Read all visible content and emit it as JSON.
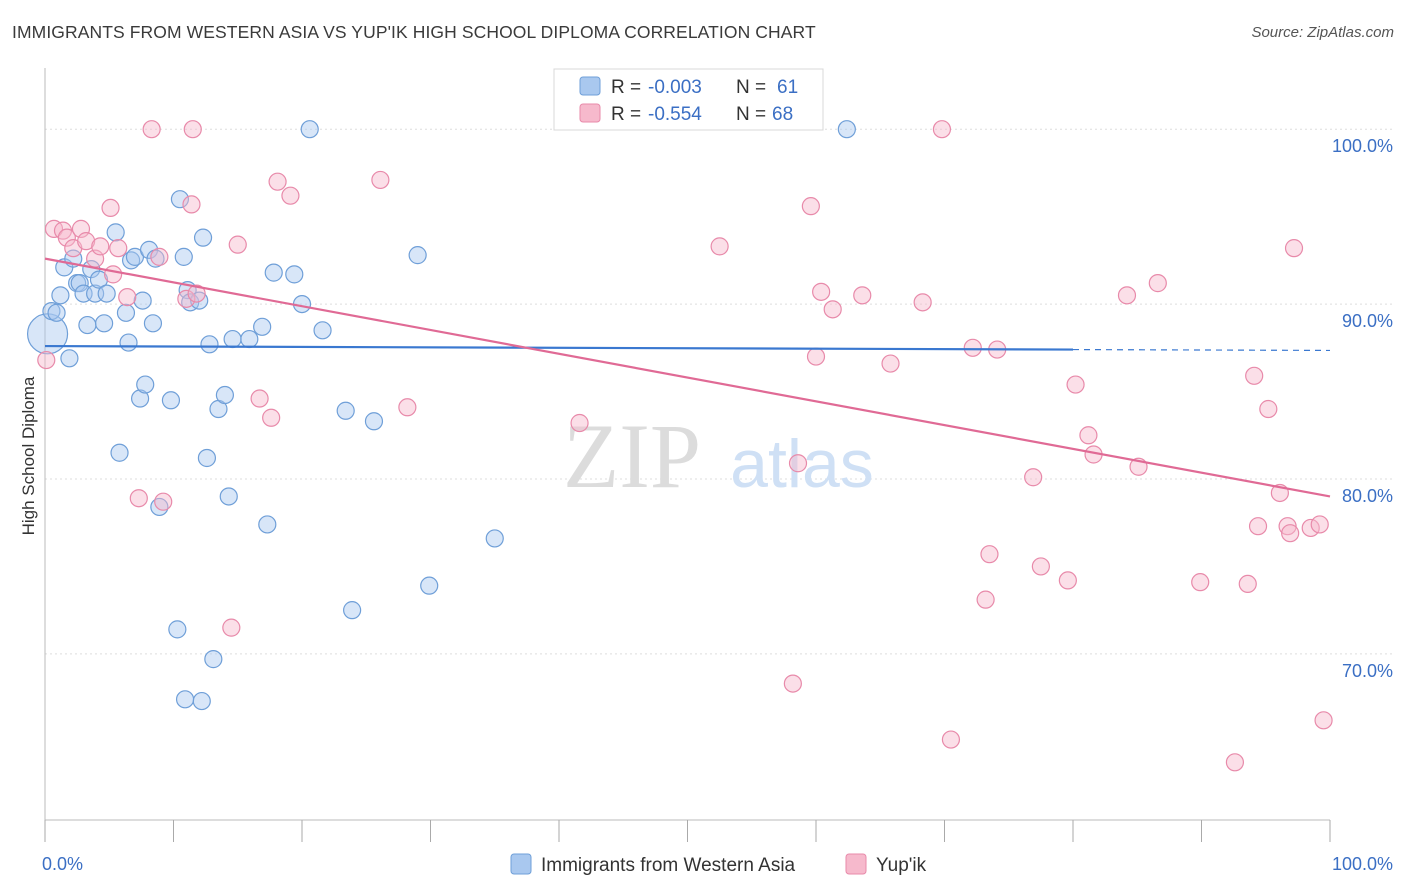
{
  "title": "IMMIGRANTS FROM WESTERN ASIA VS YUP'IK HIGH SCHOOL DIPLOMA CORRELATION CHART",
  "source": "Source: ZipAtlas.com",
  "watermark": {
    "zip": "ZIP",
    "atlas": "atlas"
  },
  "colors": {
    "blue_fill": "#a9c8ef",
    "blue_stroke": "#6f9fd8",
    "blue_line": "#3a78d0",
    "pink_fill": "#f6b9cc",
    "pink_stroke": "#e88aaa",
    "pink_line": "#e06a95",
    "grid": "#dddddd",
    "axis_label": "#3b6fc4"
  },
  "legend": {
    "rows": [
      {
        "r_label": "R = ",
        "r_value": "-0.003",
        "n_label": "N = ",
        "n_value": "61"
      },
      {
        "r_label": "R = ",
        "r_value": "-0.554",
        "n_label": "N = ",
        "n_value": "68"
      }
    ]
  },
  "bottom_legend": [
    "Immigrants from Western Asia",
    "Yup'ik"
  ],
  "chart_data": {
    "type": "scatter",
    "ylabel": "High School Diploma",
    "xlim": [
      0,
      100
    ],
    "ylim": [
      60.5,
      103.5
    ],
    "x_tick_labels": [
      "0.0%",
      "100.0%"
    ],
    "y_ticks": [
      {
        "value": 70,
        "label": "70.0%"
      },
      {
        "value": 80,
        "label": "80.0%"
      },
      {
        "value": 90,
        "label": "90.0%"
      },
      {
        "value": 100,
        "label": "100.0%"
      }
    ],
    "grid": true,
    "legend_position": "top-center",
    "series": [
      {
        "name": "Immigrants from Western Asia",
        "color": "blue",
        "trend": {
          "x": [
            0,
            80
          ],
          "y": [
            87.6,
            87.4
          ],
          "dashed_to": 100
        },
        "points": [
          [
            0.2,
            88.3,
            "big"
          ],
          [
            0.5,
            89.6
          ],
          [
            0.9,
            89.5
          ],
          [
            1.2,
            90.5
          ],
          [
            1.5,
            92.1
          ],
          [
            1.9,
            86.9
          ],
          [
            2.2,
            92.6
          ],
          [
            2.5,
            91.2
          ],
          [
            2.7,
            91.2
          ],
          [
            3.0,
            90.6
          ],
          [
            3.3,
            88.8
          ],
          [
            3.6,
            92.0
          ],
          [
            3.9,
            90.6
          ],
          [
            4.2,
            91.4
          ],
          [
            4.6,
            88.9
          ],
          [
            4.8,
            90.6
          ],
          [
            5.5,
            94.1
          ],
          [
            5.8,
            81.5
          ],
          [
            6.3,
            89.5
          ],
          [
            6.5,
            87.8
          ],
          [
            6.7,
            92.5
          ],
          [
            7.0,
            92.7
          ],
          [
            7.4,
            84.6
          ],
          [
            7.6,
            90.2
          ],
          [
            7.8,
            85.4
          ],
          [
            8.1,
            93.1
          ],
          [
            8.4,
            88.9
          ],
          [
            8.6,
            92.6
          ],
          [
            8.9,
            78.4
          ],
          [
            9.8,
            84.5
          ],
          [
            10.3,
            71.4
          ],
          [
            10.5,
            96.0
          ],
          [
            10.8,
            92.7
          ],
          [
            11.1,
            90.8
          ],
          [
            11.3,
            90.1
          ],
          [
            12.0,
            90.2
          ],
          [
            12.3,
            93.8
          ],
          [
            12.6,
            81.2
          ],
          [
            12.8,
            87.7
          ],
          [
            13.1,
            69.7
          ],
          [
            13.5,
            84.0
          ],
          [
            14.0,
            84.8
          ],
          [
            14.3,
            79.0
          ],
          [
            14.6,
            88.0
          ],
          [
            15.9,
            88.0
          ],
          [
            16.9,
            88.7
          ],
          [
            17.3,
            77.4
          ],
          [
            17.8,
            91.8
          ],
          [
            19.4,
            91.7
          ],
          [
            20.0,
            90.0
          ],
          [
            20.6,
            100.0
          ],
          [
            21.6,
            88.5
          ],
          [
            23.4,
            83.9
          ],
          [
            23.9,
            72.5
          ],
          [
            25.6,
            83.3
          ],
          [
            29.0,
            92.8
          ],
          [
            29.9,
            73.9
          ],
          [
            35.0,
            76.6
          ],
          [
            62.4,
            100.0
          ],
          [
            12.2,
            67.3
          ],
          [
            10.9,
            67.4
          ]
        ]
      },
      {
        "name": "Yup'ik",
        "color": "pink",
        "trend": {
          "x": [
            0,
            100
          ],
          "y": [
            92.6,
            79.0
          ]
        },
        "points": [
          [
            0.1,
            86.8
          ],
          [
            0.7,
            94.3
          ],
          [
            1.4,
            94.2
          ],
          [
            1.7,
            93.8
          ],
          [
            2.2,
            93.2
          ],
          [
            2.8,
            94.3
          ],
          [
            3.2,
            93.6
          ],
          [
            3.9,
            92.6
          ],
          [
            4.3,
            93.3
          ],
          [
            5.1,
            95.5
          ],
          [
            5.3,
            91.7
          ],
          [
            5.7,
            93.2
          ],
          [
            6.4,
            90.4
          ],
          [
            7.3,
            78.9
          ],
          [
            8.3,
            100.0
          ],
          [
            8.9,
            92.7
          ],
          [
            9.2,
            78.7
          ],
          [
            11.0,
            90.3
          ],
          [
            11.5,
            100.0
          ],
          [
            11.8,
            90.6
          ],
          [
            11.4,
            95.7
          ],
          [
            14.5,
            71.5
          ],
          [
            15.0,
            93.4
          ],
          [
            16.7,
            84.6
          ],
          [
            17.6,
            83.5
          ],
          [
            18.1,
            97.0
          ],
          [
            19.1,
            96.2
          ],
          [
            26.1,
            97.1
          ],
          [
            28.2,
            84.1
          ],
          [
            41.6,
            83.2
          ],
          [
            52.5,
            93.3
          ],
          [
            58.2,
            68.3
          ],
          [
            58.6,
            80.9
          ],
          [
            59.6,
            95.6
          ],
          [
            60.0,
            87.0
          ],
          [
            60.4,
            90.7
          ],
          [
            61.3,
            89.7
          ],
          [
            63.6,
            90.5
          ],
          [
            65.8,
            86.6
          ],
          [
            68.3,
            90.1
          ],
          [
            69.8,
            100.0
          ],
          [
            70.5,
            65.1
          ],
          [
            72.2,
            87.5
          ],
          [
            73.2,
            73.1
          ],
          [
            73.5,
            75.7
          ],
          [
            74.1,
            87.4
          ],
          [
            76.9,
            80.1
          ],
          [
            77.5,
            75.0
          ],
          [
            79.6,
            74.2
          ],
          [
            80.2,
            85.4
          ],
          [
            81.2,
            82.5
          ],
          [
            81.6,
            81.4
          ],
          [
            84.2,
            90.5
          ],
          [
            85.1,
            80.7
          ],
          [
            86.6,
            91.2
          ],
          [
            89.9,
            74.1
          ],
          [
            92.6,
            63.8
          ],
          [
            93.6,
            74.0
          ],
          [
            94.1,
            85.9
          ],
          [
            94.4,
            77.3
          ],
          [
            95.2,
            84.0
          ],
          [
            96.1,
            79.2
          ],
          [
            96.7,
            77.3
          ],
          [
            96.9,
            76.9
          ],
          [
            97.2,
            93.2
          ],
          [
            98.5,
            77.2
          ],
          [
            99.5,
            66.2
          ],
          [
            99.2,
            77.4
          ]
        ]
      }
    ]
  }
}
